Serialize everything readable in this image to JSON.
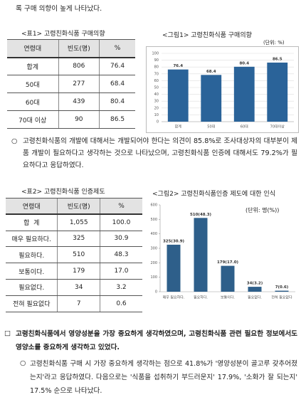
{
  "intro_text": "록 구매 의향이 높게 나타났다.",
  "table1": {
    "caption": "<표1> 고령친화식품 구매의향",
    "headers": [
      "연령대",
      "빈도(명)",
      "%"
    ],
    "rows": [
      [
        "합계",
        "806",
        "76.4"
      ],
      [
        "50대",
        "277",
        "68.4"
      ],
      [
        "60대",
        "439",
        "80.4"
      ],
      [
        "70대 이상",
        "90",
        "86.5"
      ]
    ]
  },
  "paragraph1": {
    "bullet": "○",
    "text": "고령친화식품의 개발에 대해서는 개발되어야 한다는 의견이 85.8%로 조사대상자의 대부분이 제품 개발이 필요하다고 생각하는 것으로 나타났으며, 고령친화식품 인증에 대해서도 79.2%가 필요하다고 응답하였다."
  },
  "table2": {
    "caption": "<표2> 고령친화식품 인증제도",
    "headers": [
      "연령대",
      "빈도(명)",
      "%"
    ],
    "rows": [
      [
        "합  계",
        "1,055",
        "100.0"
      ],
      [
        "매우 필요하다.",
        "325",
        "30.9"
      ],
      [
        "필요하다.",
        "510",
        "48.3"
      ],
      [
        "보통이다.",
        "179",
        "17.0"
      ],
      [
        "필요없다.",
        "34",
        "3.2"
      ],
      [
        "전혀 필요없다",
        "7",
        "0.6"
      ]
    ]
  },
  "chart_data": [
    {
      "type": "bar",
      "title": "<그림1> 고령친화식품 구매의향",
      "unit": "(단위: %)",
      "categories": [
        "합계",
        "50대",
        "60대",
        "70대이상"
      ],
      "values": [
        76.4,
        68.4,
        80.4,
        86.5
      ],
      "color": "#2a6399",
      "ylim": [
        0,
        100
      ],
      "yticks": [
        0,
        10,
        20,
        30,
        40,
        50,
        60,
        70,
        80,
        90,
        100
      ],
      "grid": true
    },
    {
      "type": "bar",
      "title": "<그림2> 고령친화식품인증 제도에 대한 인식",
      "unit": "(단위: 명(%))",
      "categories": [
        "매우 필요하다.",
        "필요하다.",
        "보통이다.",
        "필요없다.",
        "전혀 필요없다"
      ],
      "values": [
        325,
        510,
        179,
        34,
        7
      ],
      "value_labels": [
        "325(30.9)",
        "510(48.3)",
        "179(17.0)",
        "34(3.2)",
        "7(0.6)"
      ],
      "color": "#2e5f8a",
      "ylim": [
        0,
        600
      ],
      "yticks": [
        0,
        100,
        200,
        300,
        400,
        500,
        600
      ],
      "grid": false
    }
  ],
  "section": {
    "bullet": "□",
    "text": "고령친화식품에서 영양성분을 가장 중요하게 생각하였으며, 고령친화식품 관련 필요한 정보에서도 영양소를 중요하게 생각하고 있었다."
  },
  "paragraph2": {
    "bullet": "○",
    "text": "고령친화식품 구매 시 가장 중요하게 생각하는 점으로 41.8%가 '영양성분이 골고루 갖추어졌는지'라고 응답하였다. 다음으로는 '식품을 섭취하기 부드러운지' 17.9%, '소화가 잘 되는지' 17.5% 순으로 나타났다."
  }
}
